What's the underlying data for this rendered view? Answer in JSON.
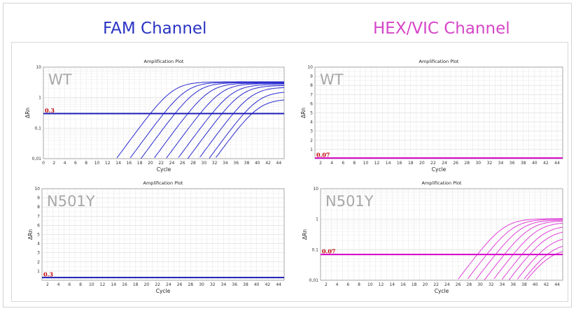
{
  "headers": {
    "fam": "FAM Channel",
    "hex": "HEX/VIC Channel"
  },
  "colors": {
    "fam_title": "#2a34c4",
    "hex_title": "#d646c8",
    "fam_line": "#2b2bd0",
    "fam_threshold": "#1c1cb4",
    "hex_line": "#e040d8",
    "hex_threshold": "#d600c8",
    "threshold_label": "#c00000"
  },
  "chart_data": [
    {
      "id": "fam-wt",
      "type": "line",
      "title": "Amplification Plot",
      "sample_label": "WT",
      "xlabel": "Cycle",
      "ylabel": "ΔRn",
      "scale": "log",
      "xlim": [
        0,
        45
      ],
      "ylim": [
        0.01,
        10
      ],
      "x_ticks": [
        0,
        2,
        4,
        6,
        8,
        10,
        12,
        14,
        16,
        18,
        20,
        22,
        24,
        26,
        28,
        30,
        32,
        34,
        36,
        38,
        40,
        42,
        44
      ],
      "y_ticks": [
        {
          "v": 0.01,
          "t": "0,01"
        },
        {
          "v": 0.1,
          "t": "0,1"
        },
        {
          "v": 1,
          "t": "1"
        },
        {
          "v": 10,
          "t": "10"
        }
      ],
      "threshold": 0.3,
      "threshold_label": "0.3",
      "line_color": "#2b2bd0",
      "threshold_color": "#1c1cb4",
      "series": [
        {
          "ct": 20.0,
          "plateau": 3.3
        },
        {
          "ct": 22.5,
          "plateau": 3.2
        },
        {
          "ct": 24.6,
          "plateau": 3.1
        },
        {
          "ct": 27.0,
          "plateau": 3.0
        },
        {
          "ct": 29.3,
          "plateau": 2.9
        },
        {
          "ct": 31.5,
          "plateau": 2.7
        },
        {
          "ct": 33.4,
          "plateau": 2.5
        },
        {
          "ct": 35.5,
          "plateau": 2.2
        },
        {
          "ct": 37.5,
          "plateau": 1.6
        },
        {
          "ct": 39.0,
          "plateau": 0.9
        }
      ]
    },
    {
      "id": "hex-wt",
      "type": "line",
      "title": "Amplification Plot",
      "sample_label": "WT",
      "xlabel": "Cycle",
      "ylabel": "ΔRn",
      "scale": "linear",
      "xlim": [
        1,
        45
      ],
      "ylim": [
        0,
        10
      ],
      "x_ticks": [
        2,
        4,
        6,
        8,
        10,
        12,
        14,
        16,
        18,
        20,
        22,
        24,
        26,
        28,
        30,
        32,
        34,
        36,
        38,
        40,
        42,
        44
      ],
      "y_ticks": [
        {
          "v": 1,
          "t": "1"
        },
        {
          "v": 2,
          "t": "2"
        },
        {
          "v": 3,
          "t": "3"
        },
        {
          "v": 4,
          "t": "4"
        },
        {
          "v": 5,
          "t": "5"
        },
        {
          "v": 6,
          "t": "6"
        },
        {
          "v": 7,
          "t": "7"
        },
        {
          "v": 8,
          "t": "8"
        },
        {
          "v": 9,
          "t": "9"
        },
        {
          "v": 10,
          "t": "10"
        }
      ],
      "threshold": 0.07,
      "threshold_label": "0.07",
      "line_color": "#e040d8",
      "threshold_color": "#d600c8",
      "series": []
    },
    {
      "id": "fam-n501y",
      "type": "line",
      "title": "Amplification Plot",
      "sample_label": "N501Y",
      "xlabel": "Cycle",
      "ylabel": "ΔRn",
      "scale": "linear",
      "xlim": [
        1,
        45
      ],
      "ylim": [
        0,
        10
      ],
      "x_ticks": [
        2,
        4,
        6,
        8,
        10,
        12,
        14,
        16,
        18,
        20,
        22,
        24,
        26,
        28,
        30,
        32,
        34,
        36,
        38,
        40,
        42,
        44
      ],
      "y_ticks": [
        {
          "v": 1,
          "t": "1"
        },
        {
          "v": 2,
          "t": "2"
        },
        {
          "v": 3,
          "t": "3"
        },
        {
          "v": 4,
          "t": "4"
        },
        {
          "v": 5,
          "t": "5"
        },
        {
          "v": 6,
          "t": "6"
        },
        {
          "v": 7,
          "t": "7"
        },
        {
          "v": 8,
          "t": "8"
        },
        {
          "v": 9,
          "t": "9"
        },
        {
          "v": 10,
          "t": "10"
        }
      ],
      "threshold": 0.3,
      "threshold_label": "0.3",
      "line_color": "#2b2bd0",
      "threshold_color": "#1c1cb4",
      "series": []
    },
    {
      "id": "hex-n501y",
      "type": "line",
      "title": "Amplification Plot",
      "sample_label": "N501Y",
      "xlabel": "Cycle",
      "ylabel": "ΔRn",
      "scale": "log",
      "xlim": [
        1,
        45
      ],
      "ylim": [
        0.01,
        10
      ],
      "x_ticks": [
        2,
        4,
        6,
        8,
        10,
        12,
        14,
        16,
        18,
        20,
        22,
        24,
        26,
        28,
        30,
        32,
        34,
        36,
        38,
        40,
        42,
        44
      ],
      "y_ticks": [
        {
          "v": 0.01,
          "t": "0,01"
        },
        {
          "v": 0.1,
          "t": "0.1"
        },
        {
          "v": 1,
          "t": "1"
        },
        {
          "v": 10,
          "t": "10"
        }
      ],
      "threshold": 0.07,
      "threshold_label": "0.07",
      "line_color": "#e040d8",
      "threshold_color": "#d600c8",
      "series": [
        {
          "ct": 29.5,
          "plateau": 1.05
        },
        {
          "ct": 31.2,
          "plateau": 1.0
        },
        {
          "ct": 32.8,
          "plateau": 0.95
        },
        {
          "ct": 34.4,
          "plateau": 0.9
        },
        {
          "ct": 36.0,
          "plateau": 0.8
        },
        {
          "ct": 37.6,
          "plateau": 0.62
        },
        {
          "ct": 39.0,
          "plateau": 0.45
        },
        {
          "ct": 40.6,
          "plateau": 0.28
        },
        {
          "ct": 42.2,
          "plateau": 0.17
        },
        {
          "ct": 43.6,
          "plateau": 0.11
        }
      ]
    }
  ]
}
